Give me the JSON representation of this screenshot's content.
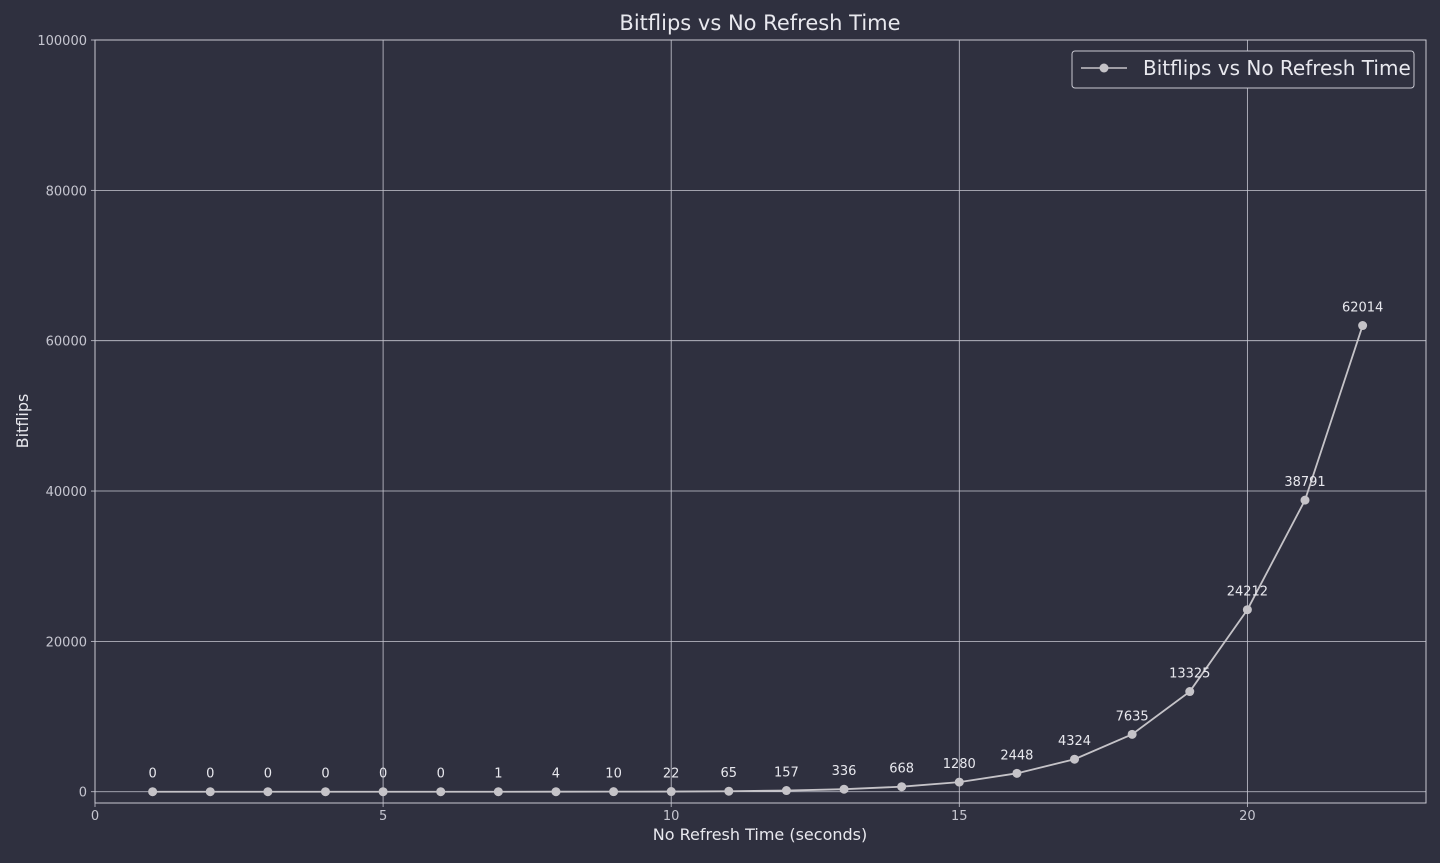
{
  "colors": {
    "background": "#2f303f",
    "grid": "#c8c8d2",
    "line": "#c5c3c8",
    "text": "#e8e8ee",
    "tick_text": "#c6c6d0"
  },
  "chart_data": {
    "type": "line",
    "title": "Bitflips vs No Refresh Time",
    "xlabel": "No Refresh Time (seconds)",
    "ylabel": "Bitflips",
    "xlim": [
      0,
      23.1
    ],
    "ylim": [
      -1500,
      100000
    ],
    "xticks": [
      0,
      5,
      10,
      15,
      20
    ],
    "yticks": [
      0,
      20000,
      40000,
      60000,
      80000,
      100000
    ],
    "grid": true,
    "legend_position": "top-right",
    "series": [
      {
        "name": "Bitflips vs No Refresh Time",
        "marker": "circle",
        "x": [
          1,
          2,
          3,
          4,
          5,
          6,
          7,
          8,
          9,
          10,
          11,
          12,
          13,
          14,
          15,
          16,
          17,
          18,
          19,
          20,
          21,
          22
        ],
        "y": [
          0,
          0,
          0,
          0,
          0,
          0,
          1,
          4,
          10,
          22,
          65,
          157,
          336,
          668,
          1280,
          2448,
          4324,
          7635,
          13325,
          24212,
          38791,
          62014
        ],
        "data_labels": [
          "0",
          "0",
          "0",
          "0",
          "0",
          "0",
          "1",
          "4",
          "10",
          "22",
          "65",
          "157",
          "336",
          "668",
          "1280",
          "2448",
          "4324",
          "7635",
          "13325",
          "24212",
          "38791",
          "62014"
        ]
      }
    ]
  }
}
